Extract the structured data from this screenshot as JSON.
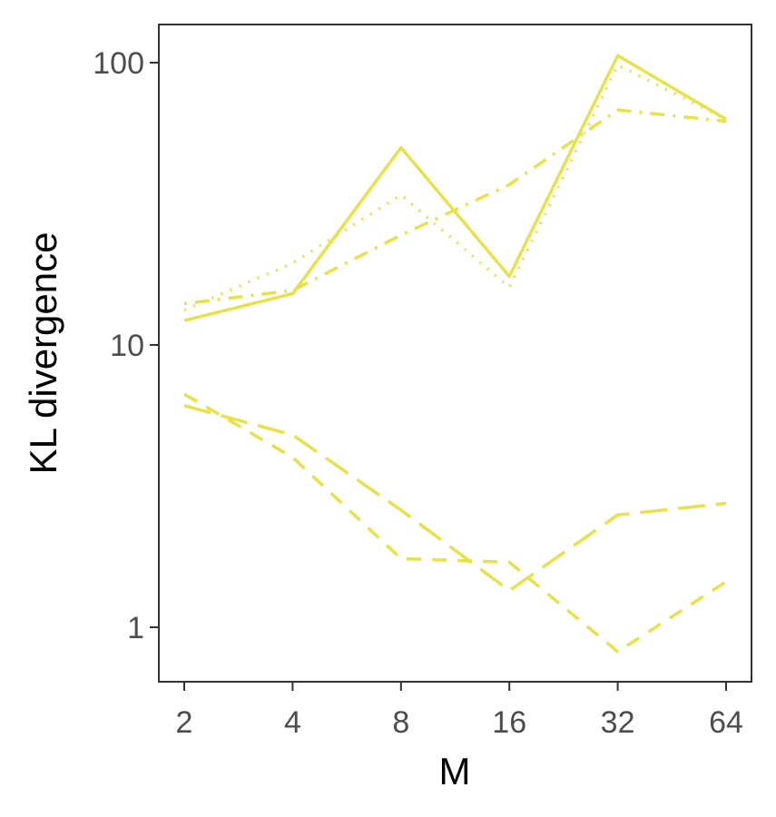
{
  "chart_data": {
    "type": "line",
    "xlabel": "M",
    "ylabel": "KL divergence",
    "x_scale": "log2",
    "y_scale": "log10",
    "x": [
      2,
      4,
      8,
      16,
      32,
      64
    ],
    "x_ticks": [
      "2",
      "4",
      "8",
      "16",
      "32",
      "64"
    ],
    "y_ticks": [
      1,
      10,
      100
    ],
    "y_tick_labels": [
      "1",
      "10",
      "100"
    ],
    "ylim": [
      0.63,
      140
    ],
    "grid": false,
    "legend": "none",
    "line_color": "#e8e24a",
    "series": [
      {
        "linestyle": "solid",
        "values": [
          12.2,
          15.2,
          50,
          17.5,
          106,
          63
        ]
      },
      {
        "linestyle": "dotted",
        "values": [
          13.3,
          19.5,
          34,
          16.0,
          98,
          63
        ]
      },
      {
        "linestyle": "dashdot",
        "values": [
          14.0,
          15.6,
          24.5,
          37,
          68,
          62
        ]
      },
      {
        "linestyle": "longdash",
        "values": [
          6.1,
          4.8,
          2.6,
          1.35,
          2.5,
          2.75
        ]
      },
      {
        "linestyle": "dashed",
        "values": [
          6.7,
          4.0,
          1.75,
          1.7,
          0.82,
          1.45
        ]
      }
    ]
  }
}
